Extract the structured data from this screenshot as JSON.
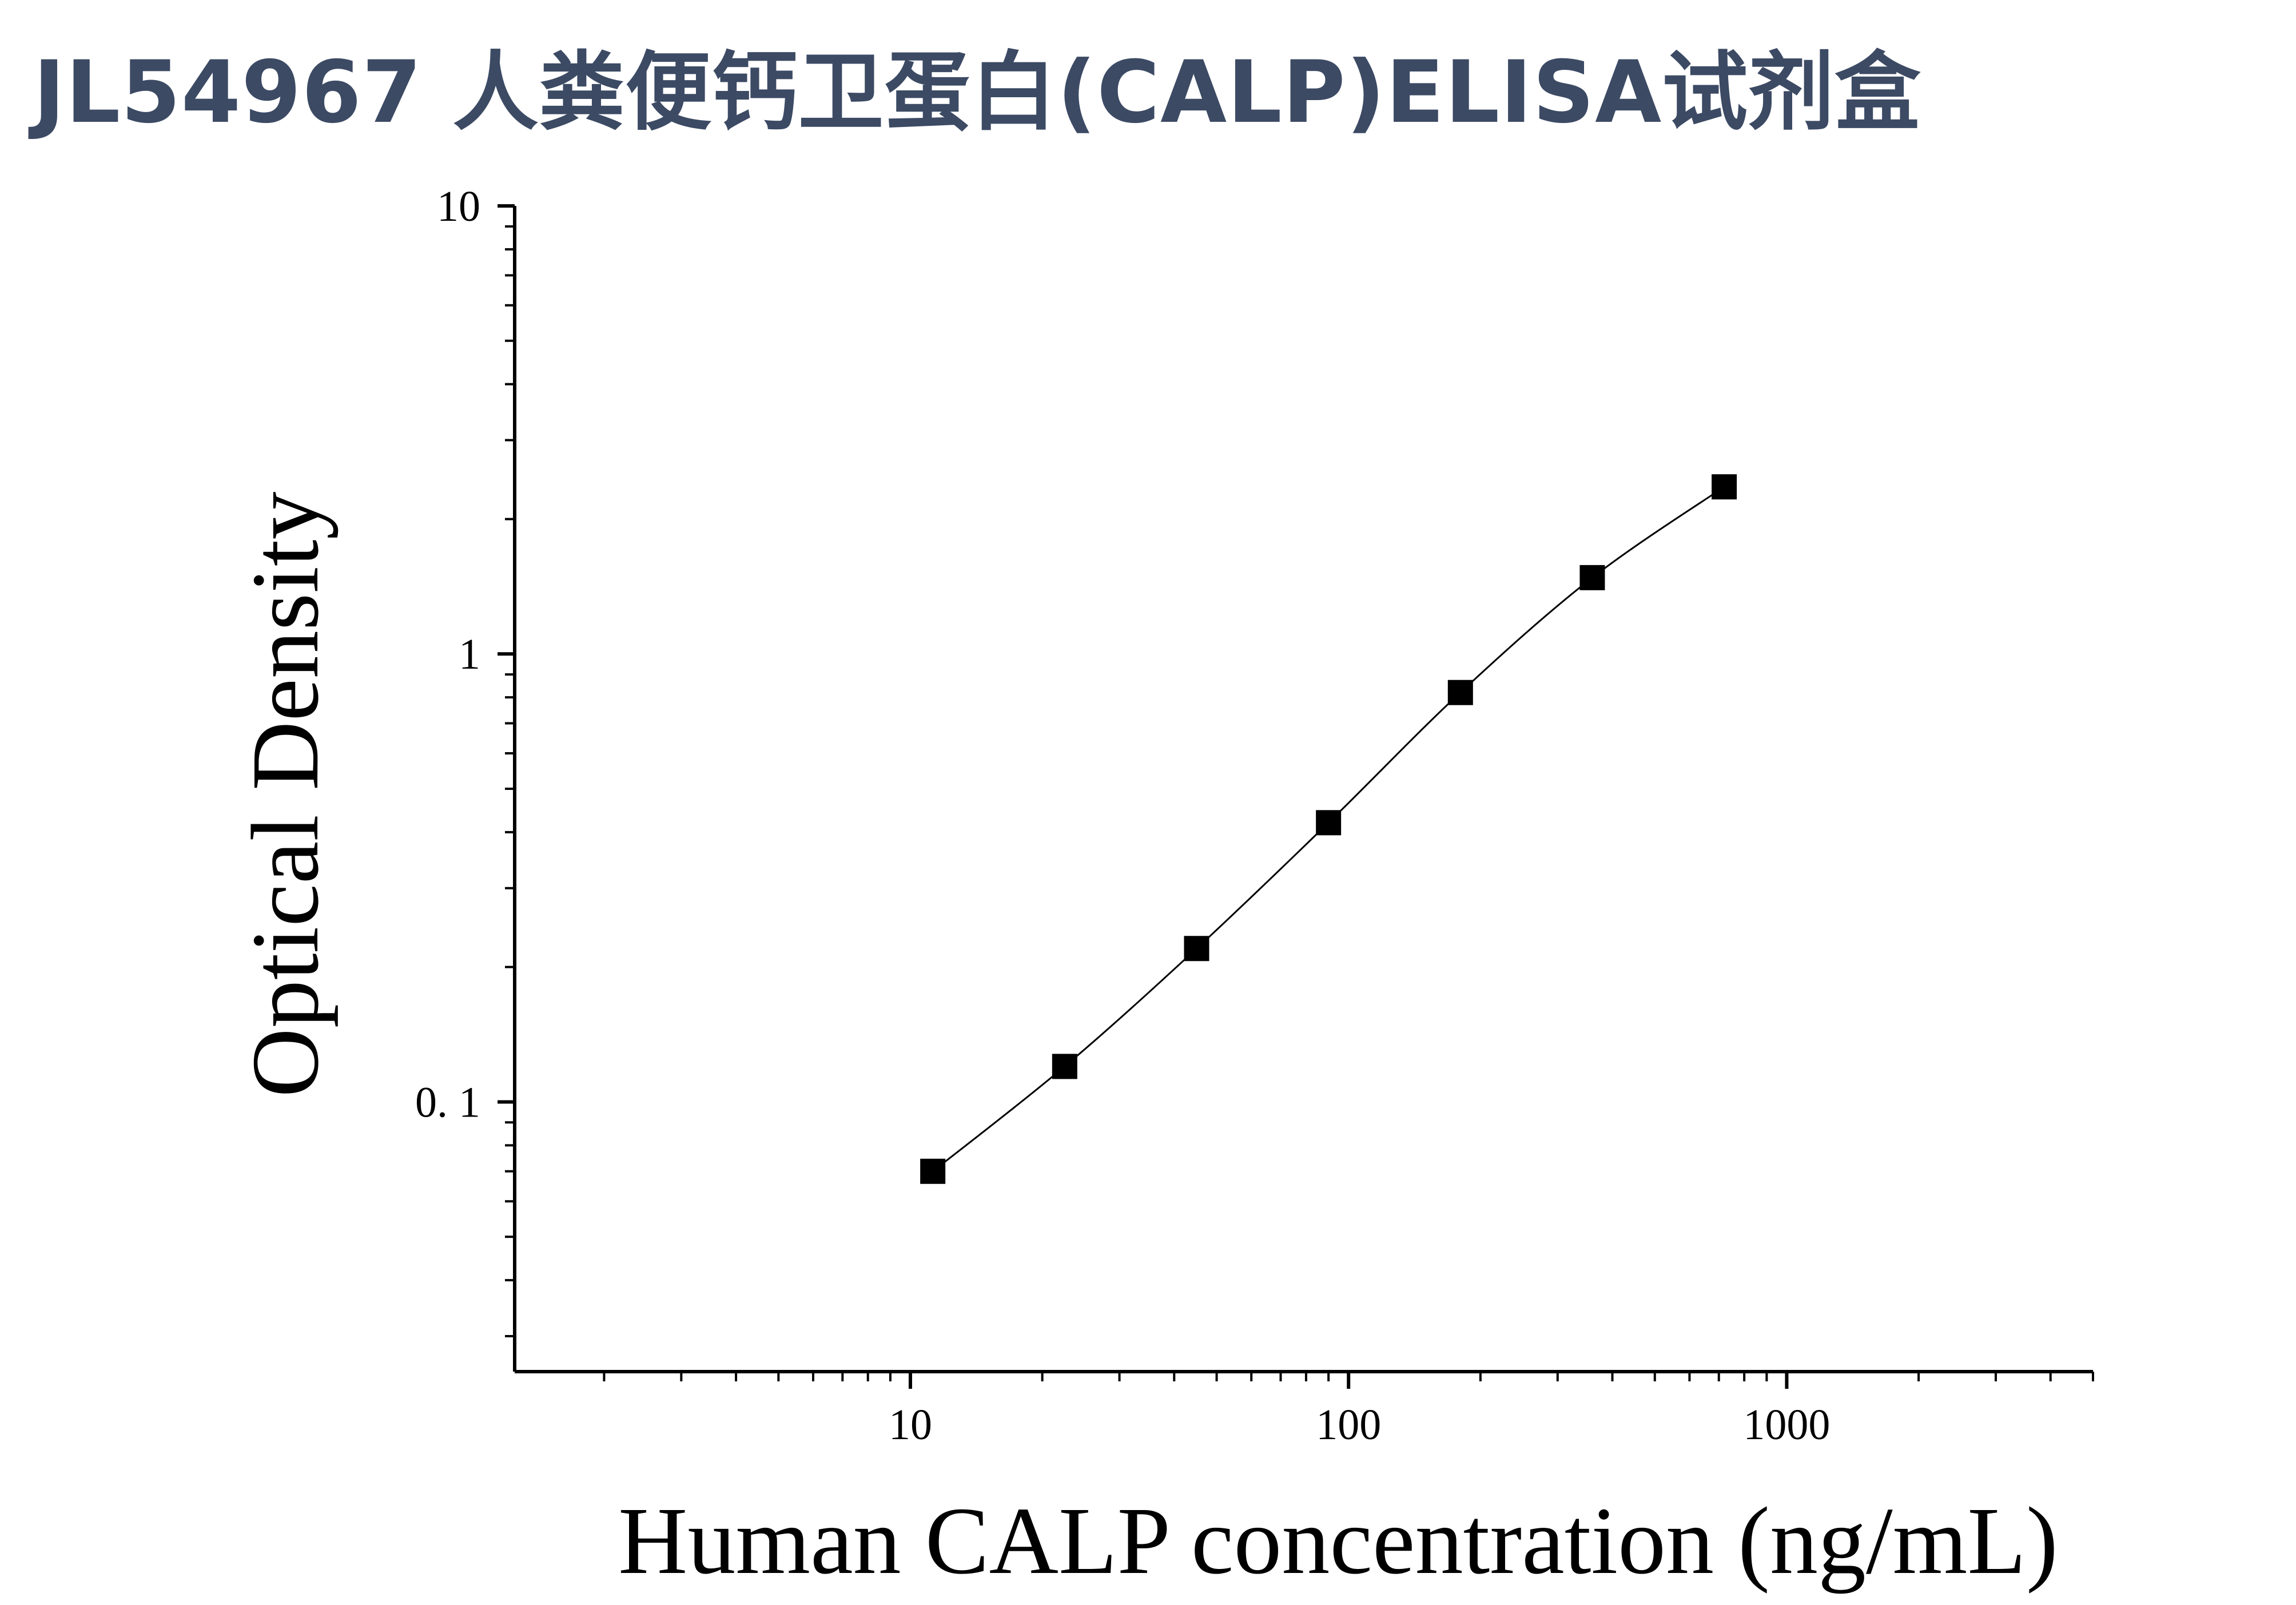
{
  "page": {
    "title": "JL54967 人粪便钙卫蛋白(CALP)ELISA试剂盒"
  },
  "chart_data": {
    "type": "scatter",
    "title": "",
    "xlabel": "Human CALP concentration (ng/mL)",
    "ylabel": "Optical Density",
    "xscale": "log",
    "yscale": "log",
    "xlim": [
      1.25,
      5000
    ],
    "ylim": [
      0.025,
      10
    ],
    "x_ticks": [
      10,
      100,
      1000
    ],
    "x_tick_labels": [
      "10",
      "100",
      "1000"
    ],
    "y_ticks": [
      0.1,
      1,
      10
    ],
    "y_tick_labels": [
      "0. 1",
      "1",
      "10"
    ],
    "grid": false,
    "legend": "none",
    "marker": "square",
    "fit_curve": true,
    "colors": {
      "points": "#000000",
      "curve": "#000000",
      "title": "#3c4a64"
    },
    "series": [
      {
        "x": [
          11.25,
          22.5,
          45,
          90,
          180,
          360,
          720
        ],
        "y": [
          0.07,
          0.12,
          0.22,
          0.42,
          0.82,
          1.48,
          2.36
        ]
      }
    ]
  }
}
